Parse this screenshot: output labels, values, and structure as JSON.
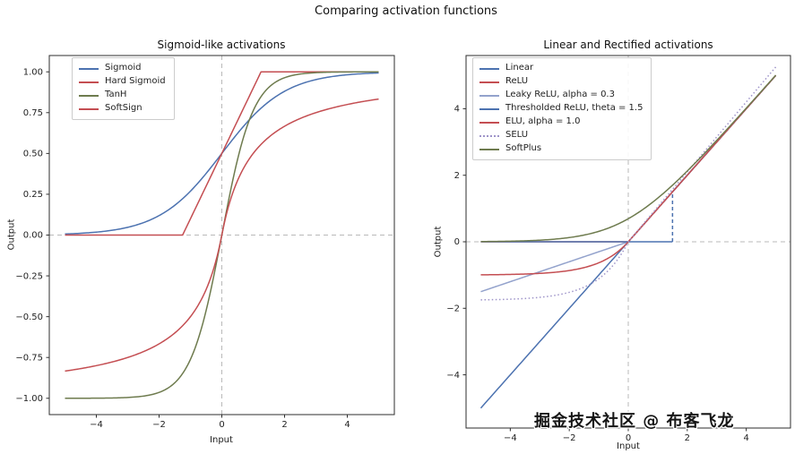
{
  "figure": {
    "title": "Comparing activation functions",
    "watermark": "掘金技术社区 @ 布客飞龙"
  },
  "colors": {
    "blue": "#4C72B0",
    "red": "#C44E52",
    "olive": "#6e7b4e",
    "periwinkle": "#93a2cc",
    "purple": "#9e94c9",
    "ref_line_gray": "#b9b9b9",
    "spine": "#2e2e2e",
    "text": "#222222"
  },
  "chart_data": [
    {
      "type": "line",
      "title": "Sigmoid-like activations",
      "xlabel": "Input",
      "ylabel": "Output",
      "xlim": [
        -5.5,
        5.5
      ],
      "ylim": [
        -1.1,
        1.1
      ],
      "x_range": [
        -5,
        5
      ],
      "sample_step": 0.05,
      "grid": false,
      "zero_ref_lines": {
        "x": 0,
        "y": 0,
        "style": "dashed",
        "color": "#b9b9b9"
      },
      "legend_position": "upper-left",
      "xtick_values": [
        -4,
        -2,
        0,
        2,
        4
      ],
      "xtick_labels": [
        "−4",
        "−2",
        "0",
        "2",
        "4"
      ],
      "ytick_values": [
        -1.0,
        -0.75,
        -0.5,
        -0.25,
        0.0,
        0.25,
        0.5,
        0.75,
        1.0
      ],
      "ytick_labels": [
        "−1.00",
        "−0.75",
        "−0.50",
        "−0.25",
        "0.00",
        "0.25",
        "0.50",
        "0.75",
        "1.00"
      ],
      "series": [
        {
          "name": "Sigmoid",
          "color": "#4C72B0",
          "style": "solid",
          "fn": "sigmoid",
          "params": {}
        },
        {
          "name": "Hard Sigmoid",
          "color": "#C44E52",
          "style": "solid",
          "fn": "hard_sigmoid",
          "params": {
            "slope": 0.4,
            "offset": 0.5
          }
        },
        {
          "name": "TanH",
          "color": "#6e7b4e",
          "style": "solid",
          "fn": "tanh",
          "params": {}
        },
        {
          "name": "SoftSign",
          "color": "#C44E52",
          "style": "solid",
          "fn": "softsign",
          "params": {}
        }
      ],
      "key_values": {
        "sigmoid_at_0": 0.5,
        "softsign_at_5": 0.833,
        "tanh_at_5": 0.9999,
        "hard_sigmoid_saturation": [
          0,
          1
        ]
      }
    },
    {
      "type": "line",
      "title": "Linear and Rectified activations",
      "xlabel": "Input",
      "ylabel": "Output",
      "xlim": [
        -5.5,
        5.5
      ],
      "ylim": [
        -5.6,
        5.6
      ],
      "x_range": [
        -5,
        5
      ],
      "sample_step": 0.05,
      "grid": false,
      "zero_ref_lines": {
        "x": 0,
        "y": 0,
        "style": "dashed",
        "color": "#b9b9b9"
      },
      "legend_position": "upper-left",
      "xtick_values": [
        -4,
        -2,
        0,
        2,
        4
      ],
      "xtick_labels": [
        "−4",
        "−2",
        "0",
        "2",
        "4"
      ],
      "ytick_values": [
        -4,
        -2,
        0,
        2,
        4
      ],
      "ytick_labels": [
        "−4",
        "−2",
        "0",
        "2",
        "4"
      ],
      "series": [
        {
          "name": "Linear",
          "color": "#4C72B0",
          "style": "solid",
          "fn": "linear",
          "params": {}
        },
        {
          "name": "ReLU",
          "color": "#C44E52",
          "style": "solid",
          "fn": "relu",
          "params": {}
        },
        {
          "name": "Leaky ReLU, alpha = 0.3",
          "color": "#93a2cc",
          "style": "solid",
          "fn": "leaky_relu",
          "params": {
            "alpha": 0.3
          }
        },
        {
          "name": "Thresholded ReLU, theta = 1.5",
          "color": "#4C72B0",
          "style": "solid",
          "fn": "thresholded_relu",
          "params": {
            "theta": 1.5
          },
          "jump_dashed": true
        },
        {
          "name": "ELU, alpha = 1.0",
          "color": "#C44E52",
          "style": "solid",
          "fn": "elu",
          "params": {
            "alpha": 1.0
          }
        },
        {
          "name": "SELU",
          "color": "#9e94c9",
          "style": "dotted",
          "fn": "selu",
          "params": {
            "lambda": 1.0507,
            "alpha": 1.67326
          }
        },
        {
          "name": "SoftPlus",
          "color": "#6e7b4e",
          "style": "solid",
          "fn": "softplus",
          "params": {}
        }
      ],
      "key_values": {
        "linear_at_-5": -5,
        "leaky_relu_at_-5": -1.5,
        "elu_negative_saturation": -1.0,
        "selu_negative_saturation": -1.758,
        "selu_at_5": 5.25,
        "softplus_at_0": 0.693,
        "thresholded_relu_jump_x": 1.5
      }
    }
  ]
}
